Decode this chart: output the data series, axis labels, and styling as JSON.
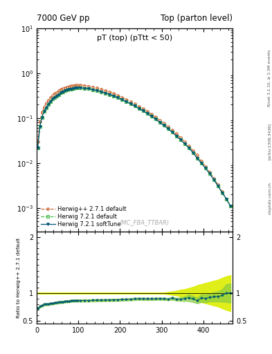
{
  "title_left": "7000 GeV pp",
  "title_right": "Top (parton level)",
  "plot_title": "pT (top) (pTtt < 50)",
  "watermark": "(MC_FBA_TTBAR)",
  "right_label_1": "Rivet 3.1.10, ≥ 3.3M events",
  "right_label_2": "[arXiv:1306.3436]",
  "right_label_3": "mcplots.cern.ch",
  "ylabel_ratio": "Ratio to Herwig++ 2.7.1 default",
  "legend_entries": [
    "Herwig++ 2.7.1 default",
    "Herwig 7.2.1 default",
    "Herwig 7.2.1 softTune"
  ],
  "xlim": [
    0,
    470
  ],
  "ylim_main": [
    0.0003,
    10
  ],
  "ylim_ratio": [
    0.45,
    2.1
  ],
  "herwig_pp_color": "#cc6633",
  "herwig721_color": "#44bb44",
  "herwig721_soft_color": "#005577",
  "ref_line_color": "#99aa00",
  "band_yellow_color": "#ddee00",
  "band_green_color": "#88cc44",
  "bg_color": "#ffffff",
  "xbins": [
    0,
    5,
    10,
    15,
    20,
    25,
    30,
    35,
    40,
    45,
    50,
    55,
    60,
    65,
    70,
    75,
    80,
    85,
    90,
    95,
    100,
    110,
    120,
    130,
    140,
    150,
    160,
    170,
    180,
    190,
    200,
    210,
    220,
    230,
    240,
    250,
    260,
    270,
    280,
    290,
    300,
    310,
    320,
    330,
    340,
    350,
    360,
    370,
    380,
    390,
    400,
    410,
    420,
    430,
    440,
    450,
    460,
    470
  ],
  "herwig_pp_vals": [
    0.03,
    0.085,
    0.135,
    0.175,
    0.215,
    0.255,
    0.29,
    0.325,
    0.355,
    0.375,
    0.405,
    0.435,
    0.46,
    0.478,
    0.495,
    0.508,
    0.52,
    0.53,
    0.538,
    0.542,
    0.545,
    0.535,
    0.518,
    0.498,
    0.472,
    0.445,
    0.415,
    0.385,
    0.354,
    0.323,
    0.292,
    0.263,
    0.235,
    0.208,
    0.184,
    0.162,
    0.142,
    0.123,
    0.106,
    0.09,
    0.077,
    0.065,
    0.054,
    0.045,
    0.037,
    0.03,
    0.024,
    0.019,
    0.015,
    0.011,
    0.0085,
    0.0063,
    0.0046,
    0.0033,
    0.0023,
    0.0016,
    0.0011
  ],
  "herwig721_vals": [
    0.022,
    0.065,
    0.105,
    0.14,
    0.172,
    0.205,
    0.235,
    0.265,
    0.292,
    0.312,
    0.338,
    0.365,
    0.388,
    0.406,
    0.422,
    0.435,
    0.448,
    0.458,
    0.466,
    0.47,
    0.472,
    0.464,
    0.45,
    0.433,
    0.412,
    0.388,
    0.363,
    0.337,
    0.311,
    0.284,
    0.258,
    0.233,
    0.209,
    0.186,
    0.165,
    0.145,
    0.127,
    0.11,
    0.095,
    0.081,
    0.069,
    0.058,
    0.049,
    0.04,
    0.033,
    0.027,
    0.022,
    0.017,
    0.013,
    0.01,
    0.0077,
    0.0058,
    0.0043,
    0.0031,
    0.0022,
    0.0016,
    0.0011
  ],
  "herwig721_soft_vals": [
    0.022,
    0.065,
    0.105,
    0.14,
    0.172,
    0.205,
    0.235,
    0.265,
    0.292,
    0.312,
    0.338,
    0.365,
    0.388,
    0.406,
    0.422,
    0.435,
    0.448,
    0.458,
    0.466,
    0.47,
    0.472,
    0.464,
    0.45,
    0.433,
    0.412,
    0.388,
    0.363,
    0.337,
    0.311,
    0.284,
    0.258,
    0.233,
    0.209,
    0.186,
    0.165,
    0.145,
    0.127,
    0.11,
    0.095,
    0.081,
    0.069,
    0.058,
    0.049,
    0.04,
    0.033,
    0.027,
    0.022,
    0.017,
    0.013,
    0.01,
    0.0077,
    0.0058,
    0.0043,
    0.0031,
    0.0022,
    0.0016,
    0.0011
  ],
  "ratio_h721": [
    0.73,
    0.76,
    0.778,
    0.797,
    0.8,
    0.804,
    0.81,
    0.815,
    0.822,
    0.832,
    0.835,
    0.839,
    0.843,
    0.849,
    0.853,
    0.856,
    0.862,
    0.865,
    0.867,
    0.868,
    0.866,
    0.868,
    0.868,
    0.87,
    0.873,
    0.873,
    0.875,
    0.876,
    0.879,
    0.88,
    0.884,
    0.886,
    0.89,
    0.895,
    0.897,
    0.896,
    0.895,
    0.895,
    0.897,
    0.9,
    0.896,
    0.892,
    0.907,
    0.889,
    0.892,
    0.9,
    0.917,
    0.895,
    0.867,
    0.909,
    0.906,
    0.921,
    0.935,
    0.939,
    0.957,
    1.0,
    1.0
  ],
  "ratio_soft": [
    0.73,
    0.76,
    0.778,
    0.797,
    0.8,
    0.804,
    0.81,
    0.815,
    0.822,
    0.832,
    0.835,
    0.839,
    0.843,
    0.849,
    0.853,
    0.856,
    0.862,
    0.865,
    0.867,
    0.868,
    0.866,
    0.868,
    0.868,
    0.87,
    0.873,
    0.873,
    0.875,
    0.876,
    0.879,
    0.88,
    0.884,
    0.886,
    0.89,
    0.895,
    0.897,
    0.896,
    0.895,
    0.895,
    0.897,
    0.9,
    0.896,
    0.892,
    0.907,
    0.889,
    0.892,
    0.9,
    0.917,
    0.895,
    0.867,
    0.909,
    0.906,
    0.921,
    0.935,
    0.939,
    0.957,
    1.0,
    1.0
  ],
  "ref_band_lo": [
    0.99,
    0.99,
    0.99,
    0.99,
    0.99,
    0.99,
    0.99,
    0.99,
    0.99,
    0.99,
    0.99,
    0.99,
    0.99,
    0.99,
    0.99,
    0.99,
    0.99,
    0.99,
    0.99,
    0.99,
    0.99,
    0.99,
    0.99,
    0.99,
    0.99,
    0.99,
    0.99,
    0.99,
    0.99,
    0.99,
    0.99,
    0.99,
    0.99,
    0.99,
    0.99,
    0.99,
    0.99,
    0.99,
    0.99,
    0.99,
    0.99,
    0.98,
    0.97,
    0.96,
    0.94,
    0.93,
    0.91,
    0.89,
    0.86,
    0.84,
    0.82,
    0.8,
    0.78,
    0.76,
    0.73,
    0.7,
    0.68
  ],
  "ref_band_hi": [
    1.01,
    1.01,
    1.01,
    1.01,
    1.01,
    1.01,
    1.01,
    1.01,
    1.01,
    1.01,
    1.01,
    1.01,
    1.01,
    1.01,
    1.01,
    1.01,
    1.01,
    1.01,
    1.01,
    1.01,
    1.01,
    1.01,
    1.01,
    1.01,
    1.01,
    1.01,
    1.01,
    1.01,
    1.01,
    1.01,
    1.01,
    1.01,
    1.01,
    1.01,
    1.01,
    1.01,
    1.01,
    1.01,
    1.01,
    1.01,
    1.01,
    1.02,
    1.03,
    1.04,
    1.06,
    1.07,
    1.09,
    1.11,
    1.14,
    1.16,
    1.18,
    1.2,
    1.22,
    1.24,
    1.27,
    1.3,
    1.32
  ],
  "green_band_lo": [
    0.71,
    0.74,
    0.758,
    0.777,
    0.78,
    0.784,
    0.79,
    0.795,
    0.802,
    0.812,
    0.815,
    0.819,
    0.823,
    0.829,
    0.833,
    0.836,
    0.842,
    0.845,
    0.847,
    0.848,
    0.846,
    0.848,
    0.848,
    0.85,
    0.853,
    0.853,
    0.855,
    0.856,
    0.859,
    0.86,
    0.864,
    0.866,
    0.87,
    0.875,
    0.877,
    0.876,
    0.875,
    0.875,
    0.877,
    0.88,
    0.876,
    0.872,
    0.88,
    0.865,
    0.862,
    0.86,
    0.857,
    0.84,
    0.817,
    0.839,
    0.836,
    0.851,
    0.855,
    0.849,
    0.847,
    0.84,
    0.83
  ],
  "green_band_hi": [
    0.75,
    0.78,
    0.798,
    0.817,
    0.82,
    0.824,
    0.83,
    0.835,
    0.842,
    0.852,
    0.855,
    0.859,
    0.863,
    0.869,
    0.873,
    0.876,
    0.882,
    0.885,
    0.887,
    0.888,
    0.886,
    0.888,
    0.888,
    0.89,
    0.893,
    0.893,
    0.895,
    0.896,
    0.899,
    0.9,
    0.904,
    0.906,
    0.91,
    0.915,
    0.917,
    0.916,
    0.915,
    0.915,
    0.917,
    0.92,
    0.916,
    0.912,
    0.934,
    0.913,
    0.922,
    0.94,
    0.977,
    0.95,
    0.917,
    0.979,
    0.976,
    0.991,
    1.015,
    1.029,
    1.067,
    1.16,
    1.17
  ]
}
